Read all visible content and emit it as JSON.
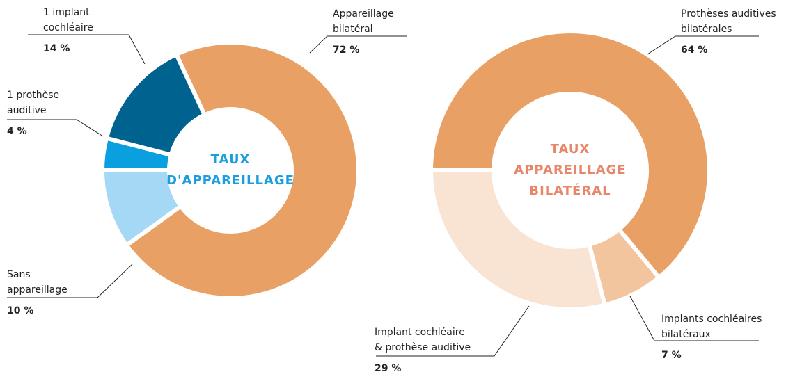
{
  "chart_data": [
    {
      "type": "donut",
      "center_label": [
        "TAUX",
        "D'APPAREILLAGE"
      ],
      "center_color": "#1a9ee0",
      "segments": [
        {
          "name": [
            "Appareillage",
            "bilatéral"
          ],
          "value": 72,
          "value_label": "72 %",
          "color": "#e8a064"
        },
        {
          "name": [
            "Sans",
            "appareillage"
          ],
          "value": 10,
          "value_label": "10 %",
          "color": "#a5d8f5"
        },
        {
          "name": [
            "1 prothèse",
            "auditive"
          ],
          "value": 4,
          "value_label": "4 %",
          "color": "#0aa0e0"
        },
        {
          "name": [
            "1 implant",
            "cochléaire"
          ],
          "value": 14,
          "value_label": "14 %",
          "color": "#00628f"
        }
      ]
    },
    {
      "type": "donut",
      "center_label": [
        "TAUX",
        "APPAREILLAGE",
        "BILATÉRAL"
      ],
      "center_color": "#e8866a",
      "segments": [
        {
          "name": [
            "Prothèses auditives",
            "bilatérales"
          ],
          "value": 64,
          "value_label": "64 %",
          "color": "#e8a064"
        },
        {
          "name": [
            "Implants cochléaires",
            "bilatéraux"
          ],
          "value": 7,
          "value_label": "7 %",
          "color": "#f2c59e"
        },
        {
          "name": [
            "Implant cochléaire",
            "& prothèse auditive"
          ],
          "value": 29,
          "value_label": "29 %",
          "color": "#f9e3d2"
        }
      ]
    }
  ]
}
